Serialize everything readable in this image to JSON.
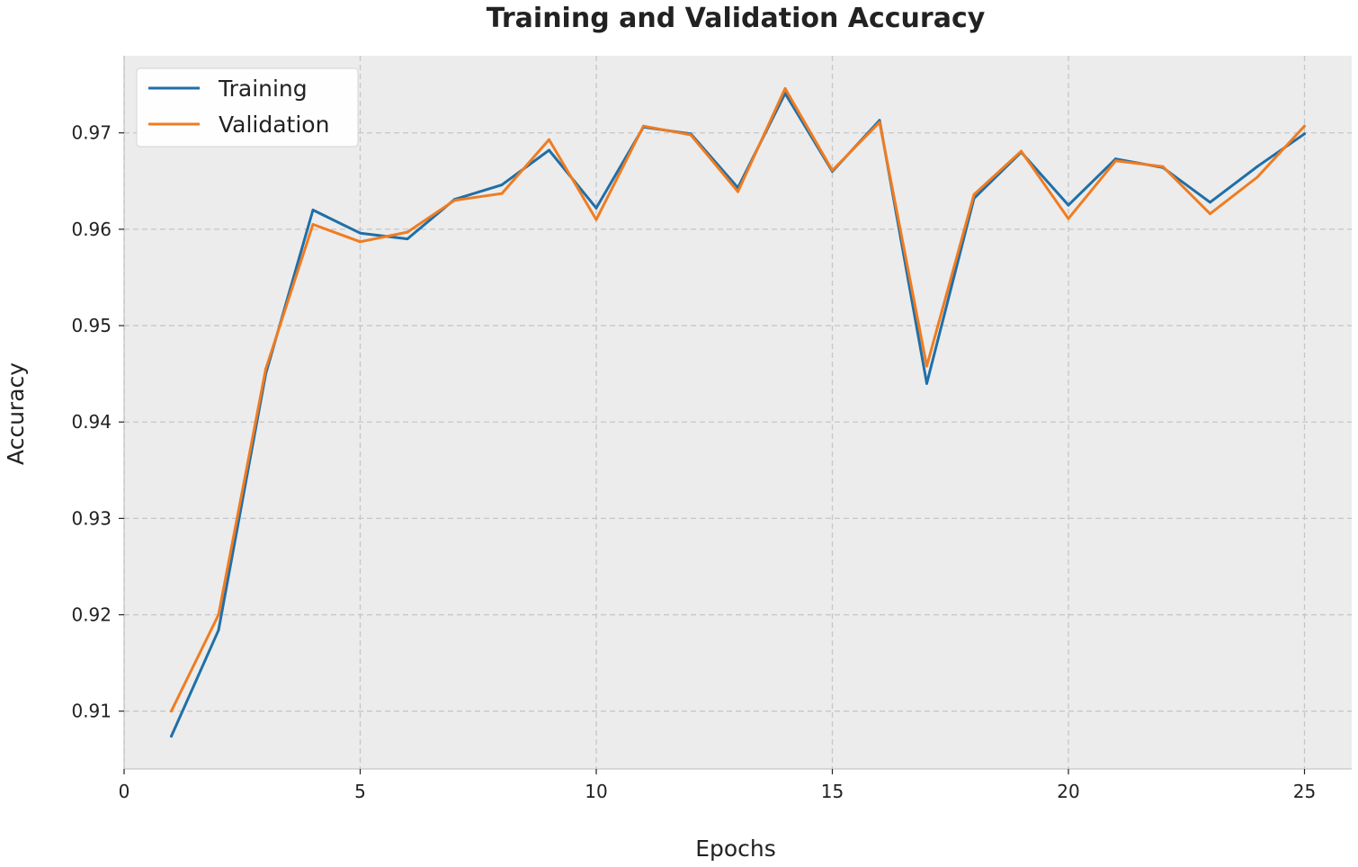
{
  "chart_data": {
    "type": "line",
    "title": "Training and Validation Accuracy",
    "xlabel": "Epochs",
    "ylabel": "Accuracy",
    "xlim": [
      0,
      26
    ],
    "ylim": [
      0.904,
      0.978
    ],
    "xticks": [
      0,
      5,
      10,
      15,
      20,
      25
    ],
    "yticks": [
      0.91,
      0.92,
      0.93,
      0.94,
      0.95,
      0.96,
      0.97
    ],
    "grid": true,
    "legend_position": "top-left",
    "x": [
      1,
      2,
      3,
      4,
      5,
      6,
      7,
      8,
      9,
      10,
      11,
      12,
      13,
      14,
      15,
      16,
      17,
      18,
      19,
      20,
      21,
      22,
      23,
      24,
      25
    ],
    "series": [
      {
        "name": "Training",
        "color": "#1f6fa8",
        "values": [
          0.9074,
          0.9184,
          0.945,
          0.962,
          0.9596,
          0.959,
          0.9631,
          0.9646,
          0.9682,
          0.9622,
          0.9706,
          0.9699,
          0.9643,
          0.9741,
          0.966,
          0.9713,
          0.944,
          0.9632,
          0.968,
          0.9625,
          0.9673,
          0.9664,
          0.9628,
          0.9665,
          0.9699
        ]
      },
      {
        "name": "Validation",
        "color": "#f07c20",
        "values": [
          0.91,
          0.92,
          0.9455,
          0.9605,
          0.9587,
          0.9597,
          0.963,
          0.9637,
          0.9693,
          0.961,
          0.9707,
          0.9698,
          0.9639,
          0.9746,
          0.9661,
          0.9711,
          0.9458,
          0.9636,
          0.9681,
          0.9611,
          0.9671,
          0.9665,
          0.9616,
          0.9654,
          0.9707
        ]
      }
    ]
  }
}
